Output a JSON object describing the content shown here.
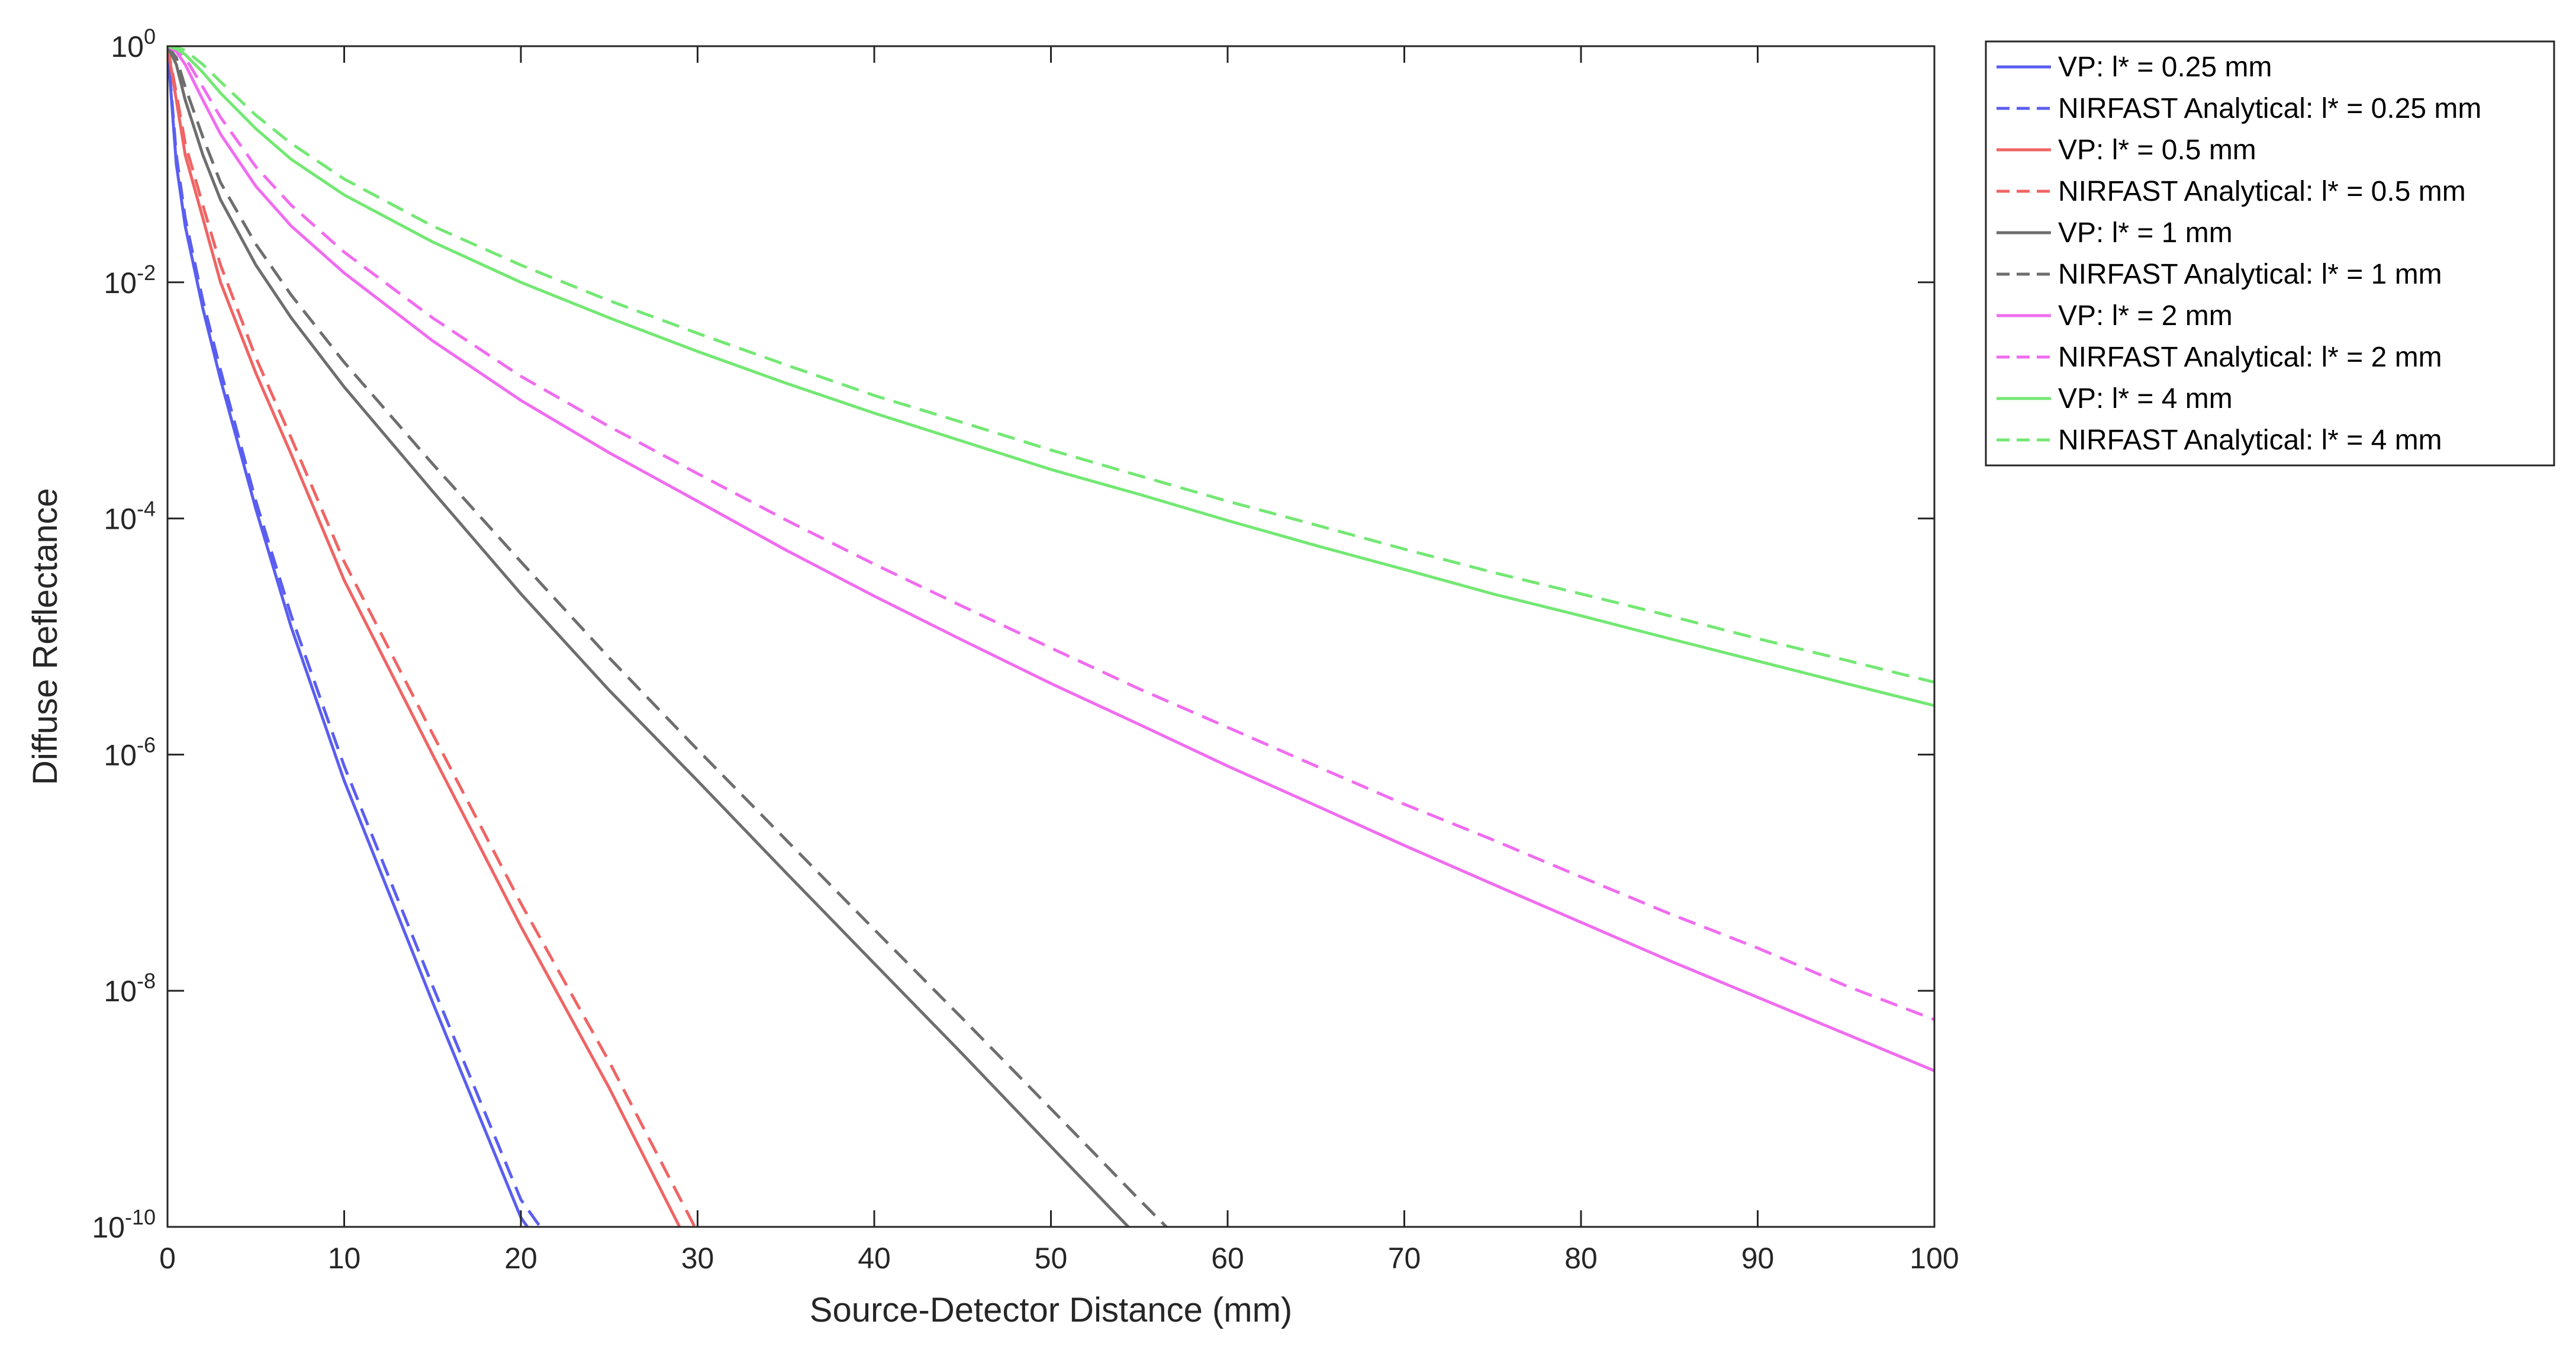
{
  "chart_data": {
    "type": "line",
    "title": "",
    "xlabel": "Source-Detector Distance (mm)",
    "ylabel": "Diffuse Reflectance",
    "xlim": [
      0,
      100
    ],
    "ylim": [
      1e-10,
      1
    ],
    "yscale": "log",
    "grid": false,
    "legend_position": "outside top-right",
    "x_ticks": [
      0,
      10,
      20,
      30,
      40,
      50,
      60,
      70,
      80,
      90,
      100
    ],
    "y_ticks": [
      {
        "base": "10",
        "exp": "-10",
        "value": 1e-10
      },
      {
        "base": "10",
        "exp": "-8",
        "value": 1e-08
      },
      {
        "base": "10",
        "exp": "-6",
        "value": 1e-06
      },
      {
        "base": "10",
        "exp": "-4",
        "value": 0.0001
      },
      {
        "base": "10",
        "exp": "-2",
        "value": 0.01
      },
      {
        "base": "10",
        "exp": "0",
        "value": 1
      }
    ],
    "x": [
      0,
      0.5,
      1,
      2,
      3,
      5,
      7,
      10,
      15,
      20,
      25,
      30,
      35,
      40,
      45,
      50,
      55,
      60,
      65,
      70,
      75,
      80,
      85,
      90,
      95,
      100
    ],
    "series": [
      {
        "name": "VP: l* = 0.25 mm",
        "color": "#5a5ef0",
        "dash": "solid",
        "y": [
          1,
          0.1,
          0.03,
          0.006,
          0.0015,
          0.00012,
          1.2e-05,
          6e-07,
          8e-09,
          1.2e-10,
          1e-11,
          null,
          null,
          null,
          null,
          null,
          null,
          null,
          null,
          null,
          null,
          null,
          null,
          null,
          null,
          null
        ]
      },
      {
        "name": "NIRFAST Analytical: l* = 0.25 mm",
        "color": "#5a5ef0",
        "dash": "dashed",
        "y": [
          1,
          0.12,
          0.035,
          0.007,
          0.0018,
          0.00014,
          1.5e-05,
          8e-07,
          1.1e-08,
          1.7e-10,
          1.5e-11,
          null,
          null,
          null,
          null,
          null,
          null,
          null,
          null,
          null,
          null,
          null,
          null,
          null,
          null,
          null
        ]
      },
      {
        "name": "VP: l* = 0.5 mm",
        "color": "#f06464",
        "dash": "solid",
        "y": [
          1,
          0.35,
          0.12,
          0.035,
          0.01,
          0.0017,
          0.00035,
          3e-05,
          1e-06,
          3.5e-08,
          1.5e-09,
          5e-11,
          null,
          null,
          null,
          null,
          null,
          null,
          null,
          null,
          null,
          null,
          null,
          null,
          null,
          null
        ]
      },
      {
        "name": "NIRFAST Analytical: l* = 0.5 mm",
        "color": "#f06464",
        "dash": "dashed",
        "y": [
          1,
          0.4,
          0.15,
          0.045,
          0.014,
          0.0023,
          0.00048,
          4.3e-05,
          1.5e-06,
          5.5e-08,
          2.5e-09,
          9e-11,
          null,
          null,
          null,
          null,
          null,
          null,
          null,
          null,
          null,
          null,
          null,
          null,
          null,
          null
        ]
      },
      {
        "name": "VP: l* = 1 mm",
        "color": "#6e6e6e",
        "dash": "solid",
        "y": [
          1,
          0.7,
          0.35,
          0.12,
          0.05,
          0.014,
          0.005,
          0.0013,
          0.00017,
          2.3e-05,
          3.5e-06,
          6e-07,
          1e-07,
          1.7e-08,
          2.9e-09,
          4.8e-10,
          8e-11,
          null,
          null,
          null,
          null,
          null,
          null,
          null,
          null,
          null
        ]
      },
      {
        "name": "NIRFAST Analytical: l* = 1 mm",
        "color": "#6e6e6e",
        "dash": "dashed",
        "y": [
          1,
          0.8,
          0.45,
          0.17,
          0.07,
          0.021,
          0.0078,
          0.0021,
          0.00029,
          4.3e-05,
          6.6e-06,
          1.1e-06,
          1.9e-07,
          3.3e-08,
          5.8e-09,
          1e-09,
          1.7e-10,
          3e-11,
          null,
          null,
          null,
          null,
          null,
          null,
          null,
          null
        ]
      },
      {
        "name": "VP: l* = 2 mm",
        "color": "#f06cf0",
        "dash": "solid",
        "y": [
          1,
          0.9,
          0.7,
          0.35,
          0.18,
          0.065,
          0.03,
          0.012,
          0.0032,
          0.001,
          0.00036,
          0.00014,
          5.4e-05,
          2.2e-05,
          9.3e-06,
          4e-06,
          1.8e-06,
          8e-07,
          3.7e-07,
          1.7e-07,
          8e-08,
          3.8e-08,
          1.8e-08,
          8.8e-09,
          4.3e-09,
          2.1e-09
        ]
      },
      {
        "name": "NIRFAST Analytical: l* = 2 mm",
        "color": "#f06cf0",
        "dash": "dashed",
        "y": [
          1,
          0.95,
          0.8,
          0.45,
          0.25,
          0.095,
          0.045,
          0.018,
          0.005,
          0.0016,
          0.0006,
          0.00024,
          9.7e-05,
          4.1e-05,
          1.8e-05,
          8e-06,
          3.6e-06,
          1.7e-06,
          8e-07,
          3.8e-07,
          1.9e-07,
          9.2e-08,
          4.5e-08,
          2.3e-08,
          1.1e-08,
          5.7e-09
        ]
      },
      {
        "name": "VP: l* = 4 mm",
        "color": "#73e873",
        "dash": "solid",
        "y": [
          1,
          0.95,
          0.85,
          0.6,
          0.4,
          0.2,
          0.11,
          0.055,
          0.022,
          0.01,
          0.005,
          0.0026,
          0.0014,
          0.00078,
          0.00045,
          0.00026,
          0.00016,
          9.6e-05,
          5.9e-05,
          3.7e-05,
          2.3e-05,
          1.5e-05,
          9.6e-06,
          6.2e-06,
          4e-06,
          2.6e-06
        ]
      },
      {
        "name": "NIRFAST Analytical: l* = 4 mm",
        "color": "#73e873",
        "dash": "dashed",
        "y": [
          1,
          0.98,
          0.92,
          0.7,
          0.5,
          0.26,
          0.15,
          0.075,
          0.03,
          0.014,
          0.007,
          0.0037,
          0.002,
          0.0011,
          0.00065,
          0.00038,
          0.00023,
          0.00014,
          8.8e-05,
          5.5e-05,
          3.5e-05,
          2.3e-05,
          1.5e-05,
          9.6e-06,
          6.3e-06,
          4.1e-06
        ]
      }
    ]
  }
}
